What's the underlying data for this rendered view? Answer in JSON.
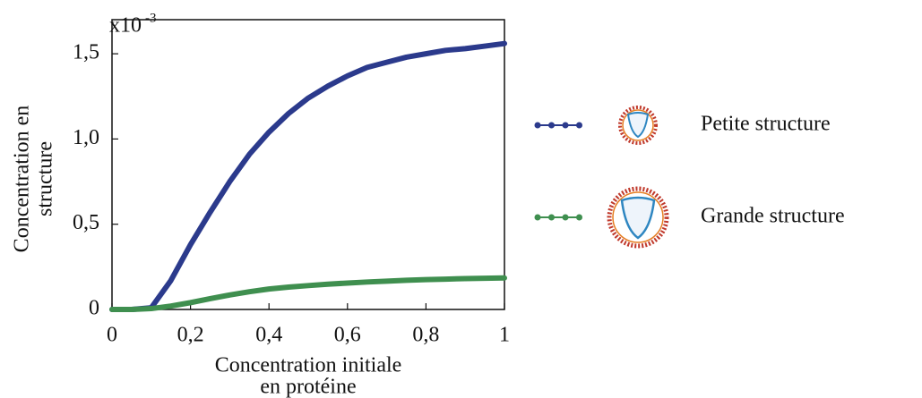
{
  "chart_data": {
    "type": "line",
    "y_scale_label": {
      "base": "x10",
      "exponent": "-3"
    },
    "xlabel": [
      "Concentration initiale",
      "en protéine"
    ],
    "ylabel": [
      "Concentration en",
      "structure"
    ],
    "x": [
      0,
      0.05,
      0.1,
      0.15,
      0.2,
      0.25,
      0.3,
      0.35,
      0.4,
      0.45,
      0.5,
      0.55,
      0.6,
      0.65,
      0.7,
      0.75,
      0.8,
      0.85,
      0.9,
      0.95,
      1
    ],
    "series": [
      {
        "name": "Petite structure",
        "color": "#2b3a8c",
        "values": [
          0,
          0,
          0.01,
          0.17,
          0.38,
          0.57,
          0.75,
          0.91,
          1.04,
          1.15,
          1.24,
          1.31,
          1.37,
          1.42,
          1.45,
          1.48,
          1.5,
          1.52,
          1.53,
          1.545,
          1.56
        ]
      },
      {
        "name": "Grande structure",
        "color": "#3f8f4f",
        "values": [
          0,
          0,
          0.005,
          0.02,
          0.04,
          0.063,
          0.085,
          0.104,
          0.12,
          0.131,
          0.14,
          0.148,
          0.155,
          0.161,
          0.166,
          0.171,
          0.175,
          0.178,
          0.181,
          0.183,
          0.185
        ]
      }
    ],
    "xlim": [
      0,
      1
    ],
    "xticks": [
      0,
      {
        "value": 0.2,
        "label": "0,2"
      },
      {
        "value": 0.4,
        "label": "0,4"
      },
      {
        "value": 0.6,
        "label": "0,6"
      },
      {
        "value": 0.8,
        "label": "0,8"
      },
      1
    ],
    "ylim": [
      0,
      1.7
    ],
    "yticks": [
      0,
      {
        "value": 0.5,
        "label": "0,5"
      },
      {
        "value": 1.0,
        "label": "1,0"
      },
      {
        "value": 1.5,
        "label": "1,5"
      }
    ],
    "grid": false
  }
}
